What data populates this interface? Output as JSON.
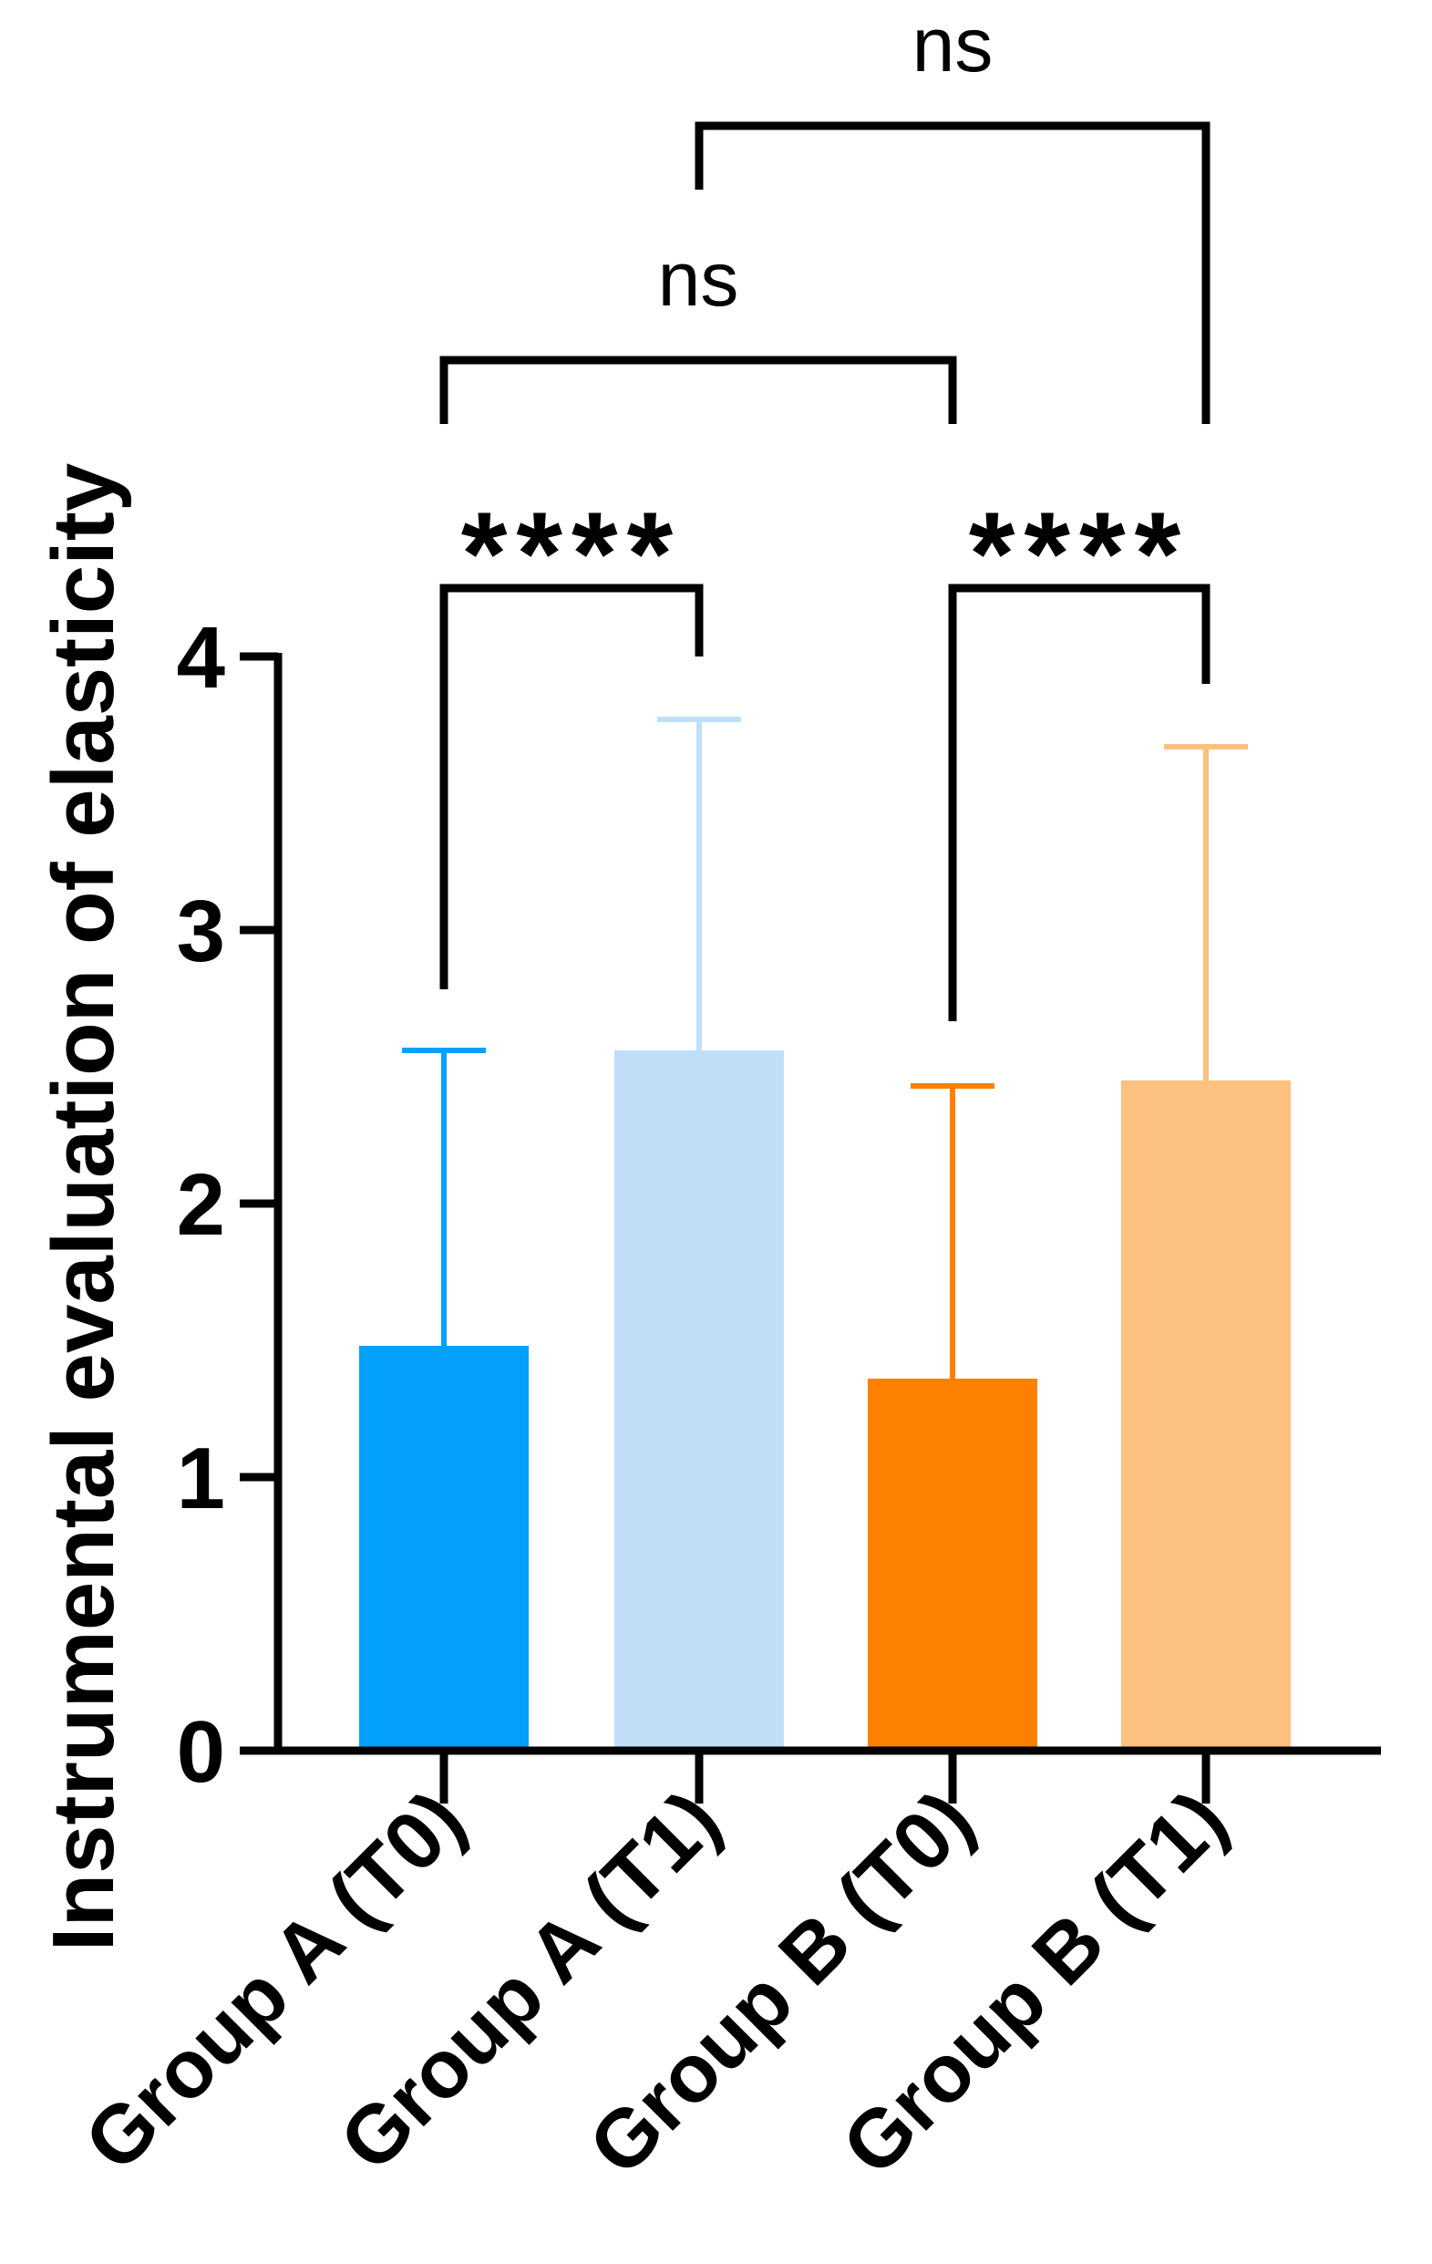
{
  "chart_data": {
    "type": "bar",
    "title": "",
    "xlabel": "",
    "ylabel": "Instrumental evaluation of elasticity",
    "ylim": [
      0,
      4
    ],
    "yticks": [
      0,
      1,
      2,
      3,
      4
    ],
    "grid": false,
    "categories": [
      "Group A (T0)",
      "Group A (T1)",
      "Group B (T0)",
      "Group B (T1)"
    ],
    "values": [
      1.48,
      2.56,
      1.36,
      2.45
    ],
    "error_upper": [
      2.56,
      3.77,
      2.43,
      3.67
    ],
    "colors": [
      "#03a1fc",
      "#c0def8",
      "#fd8000",
      "#fcc17f"
    ],
    "comparisons": [
      {
        "from": 0,
        "to": 1,
        "label": "****"
      },
      {
        "from": 2,
        "to": 3,
        "label": "****"
      },
      {
        "from": 0,
        "to": 2,
        "label": "ns"
      },
      {
        "from": 1,
        "to": 3,
        "label": "ns"
      }
    ]
  }
}
